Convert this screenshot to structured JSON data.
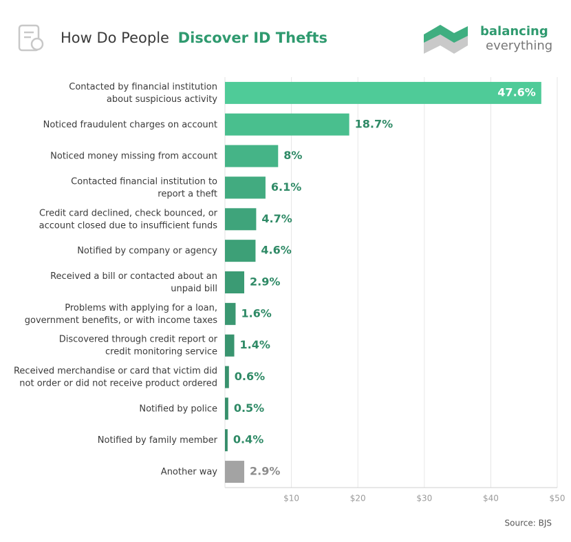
{
  "chart_data": {
    "type": "bar",
    "orientation": "horizontal",
    "title_parts": [
      "How Do People",
      "Discover ID Thefts"
    ],
    "brand": [
      "balancing",
      "everything"
    ],
    "source": "Source: BJS",
    "categories": [
      [
        "Contacted by financial institution",
        "about suspicious activity"
      ],
      [
        "Noticed fraudulent charges on account"
      ],
      [
        "Noticed money missing from account"
      ],
      [
        "Contacted financial institution to",
        "report a theft"
      ],
      [
        "Credit card declined, check bounced, or",
        "account closed due to insufficient funds"
      ],
      [
        "Notified by company or agency"
      ],
      [
        "Received a bill or contacted about an",
        "unpaid bill"
      ],
      [
        "Problems with applying for a loan,",
        "government benefits, or with income taxes"
      ],
      [
        "Discovered through credit report or",
        "credit monitoring service"
      ],
      [
        "Received merchandise or card that victim did",
        "not order or did not receive product ordered"
      ],
      [
        "Notified by police"
      ],
      [
        "Notified by family member"
      ],
      [
        "Another way"
      ]
    ],
    "values": [
      47.6,
      18.7,
      8,
      6.1,
      4.7,
      4.6,
      2.9,
      1.6,
      1.4,
      0.6,
      0.5,
      0.4,
      2.9
    ],
    "value_labels": [
      "47.6%",
      "18.7%",
      "8%",
      "6.1%",
      "4.7%",
      "4.6%",
      "2.9%",
      "1.6%",
      "1.4%",
      "0.6%",
      "0.5%",
      "0.4%",
      "2.9%"
    ],
    "colors": [
      "#4fcb98",
      "#49bf8e",
      "#45b487",
      "#42ab80",
      "#3fa47b",
      "#3da077",
      "#3b9b74",
      "#3a9771",
      "#39946f",
      "#38916d",
      "#378f6b",
      "#368d6a",
      "#a3a3a3"
    ],
    "xlim": [
      0,
      50
    ],
    "xticks": [
      {
        "value": 10,
        "label": "$10"
      },
      {
        "value": 20,
        "label": "$20"
      },
      {
        "value": 30,
        "label": "$30"
      },
      {
        "value": 40,
        "label": "$40"
      },
      {
        "value": 50,
        "label": "$50"
      }
    ],
    "grid": true
  }
}
